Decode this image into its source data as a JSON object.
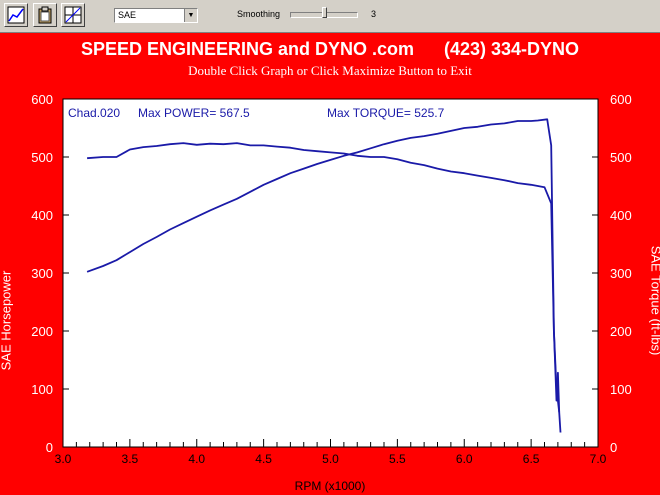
{
  "toolbar": {
    "buttons": [
      {
        "name": "graph-icon"
      },
      {
        "name": "clipboard-icon"
      },
      {
        "name": "layout-icon"
      }
    ],
    "correction_select": "SAE",
    "smoothing_label": "Smoothing",
    "smoothing_value": "3"
  },
  "graph": {
    "title": "SPEED ENGINEERING and DYNO .com      (423) 334-DYNO",
    "subtitle": "Double Click Graph or Click Maximize Button to Exit",
    "background": "#ff0000",
    "line_color": "#1a1aa8"
  },
  "chart_data": {
    "type": "line",
    "run_label": "Chad.020",
    "max_power_text": "Max POWER= 567.5",
    "max_torque_text": "Max TORQUE= 525.7",
    "xlabel": "RPM (x1000)",
    "ylabel_left": "SAE Horsepower",
    "ylabel_right": "SAE Torque (ft-lbs)",
    "xlim": [
      3.0,
      7.0
    ],
    "ylim": [
      0,
      600
    ],
    "x_ticks": [
      "3.0",
      "3.5",
      "4.0",
      "4.5",
      "5.0",
      "5.5",
      "6.0",
      "6.5",
      "7.0"
    ],
    "y_ticks": [
      "0",
      "100",
      "200",
      "300",
      "400",
      "500",
      "600"
    ],
    "series": [
      {
        "name": "SAE Horsepower",
        "x": [
          3.18,
          3.3,
          3.4,
          3.5,
          3.6,
          3.7,
          3.8,
          3.9,
          4.0,
          4.1,
          4.2,
          4.3,
          4.4,
          4.5,
          4.6,
          4.7,
          4.8,
          4.9,
          5.0,
          5.1,
          5.2,
          5.3,
          5.4,
          5.5,
          5.6,
          5.7,
          5.8,
          5.9,
          6.0,
          6.1,
          6.2,
          6.3,
          6.4,
          6.5,
          6.55,
          6.62,
          6.65,
          6.67,
          6.69,
          6.7,
          6.71,
          6.72
        ],
        "y": [
          302,
          312,
          322,
          336,
          350,
          362,
          375,
          386,
          397,
          408,
          418,
          428,
          440,
          452,
          462,
          472,
          480,
          488,
          495,
          502,
          508,
          515,
          522,
          528,
          533,
          536,
          540,
          545,
          550,
          552,
          556,
          558,
          562,
          562,
          563,
          565,
          520,
          200,
          80,
          128,
          60,
          25
        ]
      },
      {
        "name": "SAE Torque (ft-lbs)",
        "x": [
          3.18,
          3.3,
          3.4,
          3.5,
          3.6,
          3.7,
          3.8,
          3.9,
          4.0,
          4.1,
          4.2,
          4.3,
          4.4,
          4.5,
          4.6,
          4.7,
          4.8,
          4.9,
          5.0,
          5.1,
          5.2,
          5.3,
          5.4,
          5.5,
          5.6,
          5.7,
          5.8,
          5.9,
          6.0,
          6.1,
          6.2,
          6.3,
          6.4,
          6.5,
          6.6,
          6.65,
          6.67,
          6.69,
          6.7,
          6.71
        ],
        "y": [
          498,
          500,
          500,
          513,
          517,
          519,
          522,
          524,
          521,
          523,
          522,
          524,
          520,
          520,
          518,
          516,
          512,
          510,
          508,
          506,
          502,
          500,
          500,
          496,
          490,
          486,
          480,
          475,
          472,
          468,
          464,
          460,
          455,
          452,
          448,
          420,
          200,
          100,
          80,
          60
        ]
      }
    ]
  }
}
